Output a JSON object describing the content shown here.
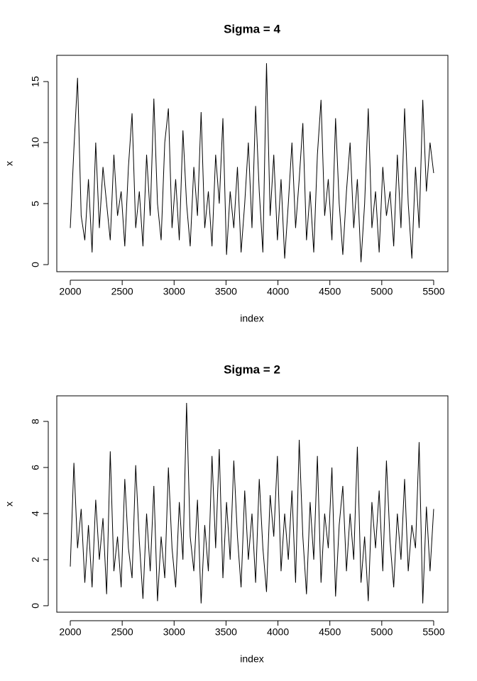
{
  "chart_data": [
    {
      "type": "line",
      "title": "Sigma = 4",
      "xlabel": "index",
      "ylabel": "x",
      "color": "#000000",
      "xlim": [
        1870,
        5637
      ],
      "ylim": [
        -0.58,
        17.15
      ],
      "xticks": [
        2000,
        2500,
        3000,
        3500,
        4000,
        4500,
        5000,
        5500
      ],
      "yticks": [
        0,
        5,
        10,
        15
      ],
      "x": [
        2000,
        2035,
        2070,
        2105,
        2140,
        2175,
        2210,
        2245,
        2280,
        2315,
        2350,
        2385,
        2420,
        2455,
        2490,
        2525,
        2560,
        2595,
        2630,
        2665,
        2700,
        2735,
        2770,
        2805,
        2840,
        2875,
        2910,
        2945,
        2980,
        3015,
        3050,
        3085,
        3120,
        3155,
        3190,
        3225,
        3260,
        3295,
        3330,
        3365,
        3400,
        3435,
        3470,
        3505,
        3540,
        3575,
        3610,
        3645,
        3680,
        3715,
        3750,
        3785,
        3820,
        3855,
        3890,
        3925,
        3960,
        3995,
        4030,
        4065,
        4100,
        4135,
        4170,
        4205,
        4240,
        4275,
        4310,
        4345,
        4380,
        4415,
        4450,
        4485,
        4520,
        4555,
        4590,
        4625,
        4660,
        4695,
        4730,
        4765,
        4800,
        4835,
        4870,
        4905,
        4940,
        4975,
        5010,
        5045,
        5080,
        5115,
        5150,
        5185,
        5220,
        5255,
        5290,
        5325,
        5360,
        5395,
        5430,
        5465,
        5500
      ],
      "values": [
        3,
        9.5,
        15.3,
        4,
        2,
        7,
        1,
        10,
        3,
        8,
        5,
        2,
        9,
        4,
        6,
        1.5,
        8,
        12.4,
        3,
        6,
        1.5,
        9,
        4,
        13.6,
        5,
        2,
        10,
        12.8,
        3,
        7,
        2,
        11,
        5,
        1.5,
        8,
        4,
        12.5,
        3,
        6,
        1.5,
        9,
        5,
        12,
        0.8,
        6,
        3,
        8,
        1,
        5,
        10,
        3,
        13,
        6,
        1,
        16.5,
        4,
        9,
        2,
        7,
        0.5,
        5,
        10,
        3,
        7,
        11.6,
        2,
        6,
        1,
        9,
        13.5,
        4,
        7,
        2,
        12,
        5,
        0.8,
        6,
        10,
        3,
        7,
        0.2,
        5,
        12.8,
        3,
        6,
        1,
        8,
        4,
        6,
        1.5,
        9,
        3,
        12.8,
        5,
        0.5,
        8,
        3,
        13.5,
        6,
        10,
        7.5
      ]
    },
    {
      "type": "line",
      "title": "Sigma = 2",
      "xlabel": "index",
      "ylabel": "x",
      "color": "#000000",
      "xlim": [
        1870,
        5637
      ],
      "ylim": [
        -0.28,
        9.11
      ],
      "xticks": [
        2000,
        2500,
        3000,
        3500,
        4000,
        4500,
        5000,
        5500
      ],
      "yticks": [
        0,
        2,
        4,
        6,
        8
      ],
      "x": [
        2000,
        2035,
        2070,
        2105,
        2140,
        2175,
        2210,
        2245,
        2280,
        2315,
        2350,
        2385,
        2420,
        2455,
        2490,
        2525,
        2560,
        2595,
        2630,
        2665,
        2700,
        2735,
        2770,
        2805,
        2840,
        2875,
        2910,
        2945,
        2980,
        3015,
        3050,
        3085,
        3120,
        3155,
        3190,
        3225,
        3260,
        3295,
        3330,
        3365,
        3400,
        3435,
        3470,
        3505,
        3540,
        3575,
        3610,
        3645,
        3680,
        3715,
        3750,
        3785,
        3820,
        3855,
        3890,
        3925,
        3960,
        3995,
        4030,
        4065,
        4100,
        4135,
        4170,
        4205,
        4240,
        4275,
        4310,
        4345,
        4380,
        4415,
        4450,
        4485,
        4520,
        4555,
        4590,
        4625,
        4660,
        4695,
        4730,
        4765,
        4800,
        4835,
        4870,
        4905,
        4940,
        4975,
        5010,
        5045,
        5080,
        5115,
        5150,
        5185,
        5220,
        5255,
        5290,
        5325,
        5360,
        5395,
        5430,
        5465,
        5500
      ],
      "values": [
        1.7,
        6.2,
        2.5,
        4.2,
        1,
        3.5,
        0.8,
        4.6,
        2,
        3.8,
        0.5,
        6.7,
        1.5,
        3,
        0.8,
        5.5,
        2.5,
        1.2,
        6.1,
        2.8,
        0.3,
        4,
        1.5,
        5.2,
        0.2,
        3,
        1.2,
        6,
        2.5,
        0.8,
        4.5,
        2,
        8.8,
        3,
        1.5,
        4.6,
        0.1,
        3.5,
        1.5,
        6.5,
        2.5,
        6.8,
        1.2,
        4.5,
        2,
        6.3,
        3,
        0.8,
        5,
        2,
        4,
        1,
        5.5,
        2.5,
        0.6,
        4.8,
        3,
        6.5,
        1.5,
        4,
        2,
        5,
        1,
        7.2,
        3,
        0.5,
        4.5,
        2,
        6.5,
        1,
        4,
        2.5,
        6,
        0.4,
        3.5,
        5.2,
        1.5,
        4,
        2,
        6.9,
        1,
        3,
        0.2,
        4.5,
        2.5,
        5,
        1.5,
        6.3,
        2.8,
        0.8,
        4,
        2,
        5.5,
        1.5,
        3.5,
        2.5,
        7.1,
        0.1,
        4.3,
        1.5,
        4.2
      ]
    }
  ]
}
